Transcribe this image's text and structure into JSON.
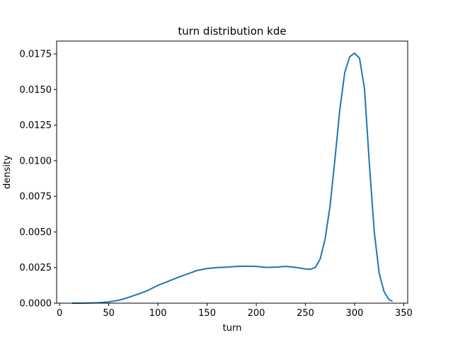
{
  "chart_data": {
    "type": "line",
    "title": "turn distribution kde",
    "xlabel": "turn",
    "ylabel": "density",
    "xlim": [
      -3,
      354
    ],
    "ylim": [
      0,
      0.0184
    ],
    "x_ticks": [
      0,
      50,
      100,
      150,
      200,
      250,
      300,
      350
    ],
    "y_ticks": [
      0.0,
      0.0025,
      0.005,
      0.0075,
      0.01,
      0.0125,
      0.015,
      0.0175
    ],
    "x_tick_labels": [
      "0",
      "50",
      "100",
      "150",
      "200",
      "250",
      "300",
      "350"
    ],
    "y_tick_labels": [
      "0.0000",
      "0.0025",
      "0.0050",
      "0.0075",
      "0.0100",
      "0.0125",
      "0.0150",
      "0.0175"
    ],
    "grid": false,
    "line_color": "#1f77b4",
    "series": [
      {
        "x": [
          13,
          20,
          30,
          40,
          50,
          60,
          70,
          80,
          90,
          100,
          110,
          120,
          130,
          140,
          150,
          160,
          170,
          180,
          190,
          200,
          210,
          220,
          230,
          240,
          250,
          255,
          260,
          265,
          270,
          275,
          280,
          285,
          290,
          295,
          300,
          305,
          310,
          315,
          320,
          325,
          330,
          335,
          338
        ],
        "y": [
          0.0,
          0.0,
          1e-05,
          3e-05,
          9e-05,
          0.0002,
          0.0004,
          0.00064,
          0.0009,
          0.00125,
          0.00152,
          0.0018,
          0.00205,
          0.0023,
          0.00243,
          0.0025,
          0.00253,
          0.00258,
          0.0026,
          0.00258,
          0.00251,
          0.00253,
          0.00258,
          0.00252,
          0.0024,
          0.00238,
          0.0025,
          0.0031,
          0.0045,
          0.0068,
          0.0101,
          0.0136,
          0.0162,
          0.0173,
          0.01755,
          0.0172,
          0.0151,
          0.0098,
          0.005,
          0.0021,
          0.0008,
          0.00025,
          0.00015
        ]
      }
    ]
  }
}
